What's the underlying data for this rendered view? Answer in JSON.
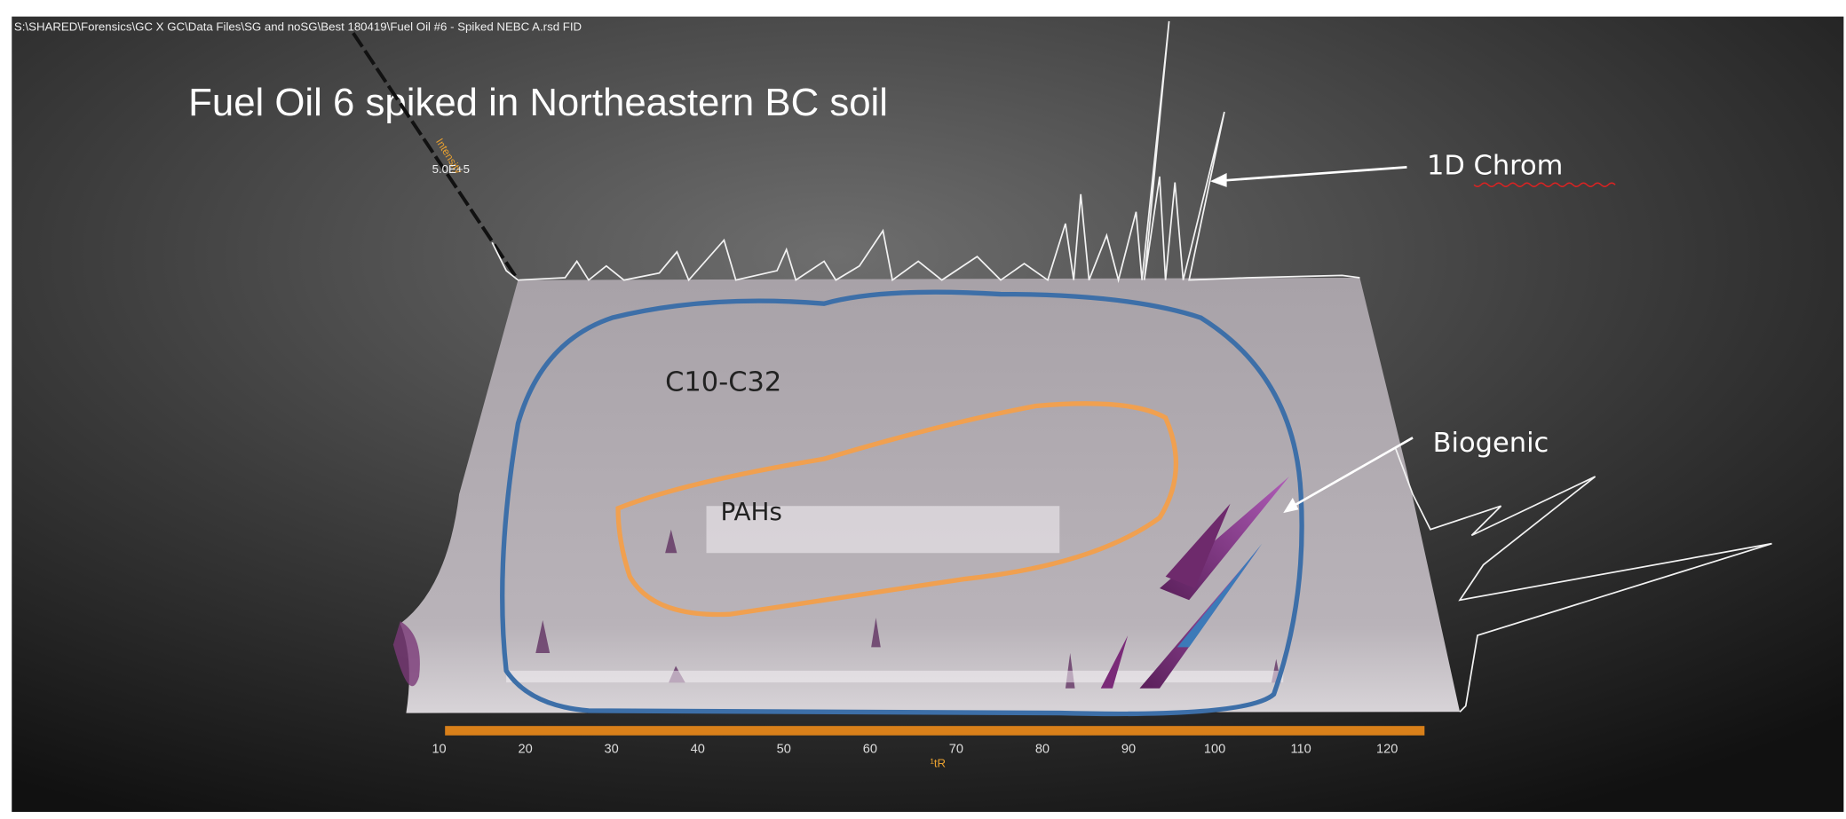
{
  "header": {
    "file_path": "S:\\SHARED\\Forensics\\GC X GC\\Data Files\\SG and noSG\\Best 180419\\Fuel Oil #6 - Spiked NEBC A.rsd FID"
  },
  "title": "Fuel Oil 6 spiked in Northeastern BC soil",
  "annotations": {
    "chrom_1d": "1D Chrom",
    "range": "C10-C32",
    "pahs": "PAHs",
    "biogenic": "Biogenic"
  },
  "axes": {
    "x_label": "¹tR",
    "x_ticks": [
      "10",
      "20",
      "30",
      "40",
      "50",
      "60",
      "70",
      "80",
      "90",
      "100",
      "110",
      "120"
    ],
    "z_label": "Intensity",
    "z_max": "5.0E+5"
  }
}
